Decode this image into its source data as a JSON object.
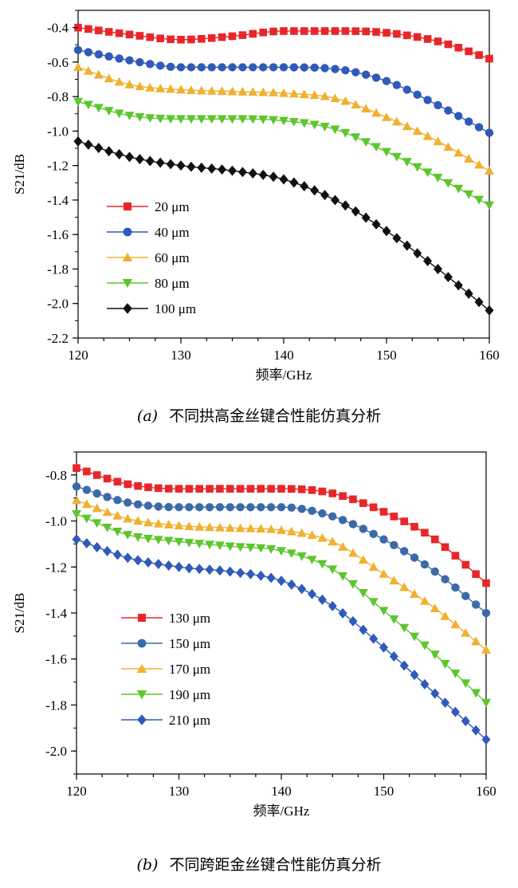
{
  "chart_data": [
    {
      "type": "line",
      "panel_label": "(a)",
      "title": "不同拱高金丝键合性能仿真分析",
      "xlabel": "频率/GHz",
      "ylabel": "S21/dB",
      "xlim": [
        120,
        160
      ],
      "ylim": [
        -2.2,
        -0.3
      ],
      "xticks": [
        120,
        130,
        140,
        150,
        160
      ],
      "yticks": [
        -0.4,
        -0.6,
        -0.8,
        -1.0,
        -1.2,
        -1.4,
        -1.6,
        -1.8,
        -2.0,
        -2.2
      ],
      "ytick_labels": [
        "-0.4",
        "-0.6",
        "-0.8",
        "-1.0",
        "-1.2",
        "-1.4",
        "-1.6",
        "-1.8",
        "-2.0",
        "-2.2"
      ],
      "legend_position": "bottom-left",
      "x": [
        120,
        125,
        130,
        135,
        140,
        145,
        150,
        155,
        160
      ],
      "series": [
        {
          "name": "20 μm",
          "color": "#e8262a",
          "marker": "square",
          "values": [
            -0.4,
            -0.44,
            -0.47,
            -0.45,
            -0.42,
            -0.42,
            -0.43,
            -0.48,
            -0.58
          ]
        },
        {
          "name": "40 μm",
          "color": "#2f5ab8",
          "marker": "circle",
          "values": [
            -0.53,
            -0.59,
            -0.63,
            -0.63,
            -0.63,
            -0.64,
            -0.71,
            -0.85,
            -1.01
          ]
        },
        {
          "name": "60 μm",
          "color": "#f0b030",
          "marker": "triangle-up",
          "values": [
            -0.63,
            -0.73,
            -0.76,
            -0.77,
            -0.78,
            -0.81,
            -0.92,
            -1.06,
            -1.23
          ]
        },
        {
          "name": "80 μm",
          "color": "#5cc62e",
          "marker": "triangle-down",
          "values": [
            -0.83,
            -0.91,
            -0.93,
            -0.93,
            -0.94,
            -0.99,
            -1.12,
            -1.27,
            -1.43
          ]
        },
        {
          "name": "100 μm",
          "color": "#111111",
          "marker": "diamond",
          "values": [
            -1.06,
            -1.15,
            -1.2,
            -1.23,
            -1.28,
            -1.4,
            -1.58,
            -1.8,
            -2.04
          ]
        }
      ]
    },
    {
      "type": "line",
      "panel_label": "(b)",
      "title": "不同跨距金丝键合性能仿真分析",
      "xlabel": "频率/GHz",
      "ylabel": "S21/dB",
      "xlim": [
        120,
        160
      ],
      "ylim": [
        -2.1,
        -0.7
      ],
      "xticks": [
        120,
        130,
        140,
        150,
        160
      ],
      "yticks": [
        -0.8,
        -1.0,
        -1.2,
        -1.4,
        -1.6,
        -1.8,
        -2.0
      ],
      "ytick_labels": [
        "-0.8",
        "-1.0",
        "-1.2",
        "-1.4",
        "-1.6",
        "-1.8",
        "-2.0"
      ],
      "legend_position": "bottom-left",
      "x": [
        120,
        125,
        130,
        135,
        140,
        145,
        150,
        155,
        160
      ],
      "series": [
        {
          "name": "130 μm",
          "color": "#e8262a",
          "marker": "square",
          "values": [
            -0.77,
            -0.84,
            -0.86,
            -0.86,
            -0.86,
            -0.88,
            -0.96,
            -1.08,
            -1.27
          ]
        },
        {
          "name": "150 μm",
          "color": "#3b6aa8",
          "marker": "circle",
          "values": [
            -0.85,
            -0.92,
            -0.94,
            -0.94,
            -0.94,
            -0.98,
            -1.08,
            -1.22,
            -1.4
          ]
        },
        {
          "name": "170 μm",
          "color": "#f0b030",
          "marker": "triangle-up",
          "values": [
            -0.91,
            -0.99,
            -1.02,
            -1.03,
            -1.04,
            -1.09,
            -1.23,
            -1.38,
            -1.56
          ]
        },
        {
          "name": "190 μm",
          "color": "#5cc62e",
          "marker": "triangle-down",
          "values": [
            -0.97,
            -1.06,
            -1.09,
            -1.11,
            -1.13,
            -1.21,
            -1.39,
            -1.58,
            -1.79
          ]
        },
        {
          "name": "210 μm",
          "color": "#2f5ab8",
          "marker": "diamond",
          "values": [
            -1.08,
            -1.16,
            -1.2,
            -1.22,
            -1.26,
            -1.37,
            -1.55,
            -1.75,
            -1.95
          ]
        }
      ]
    }
  ]
}
